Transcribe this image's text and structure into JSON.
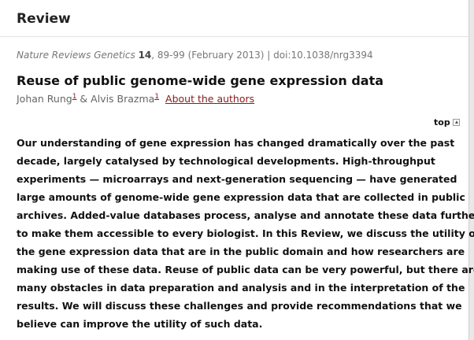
{
  "section": {
    "heading": "Review"
  },
  "citation": {
    "journal": "Nature Reviews Genetics",
    "volume": "14",
    "rest": ", 89-99 (February 2013) | doi:10.1038/nrg3394"
  },
  "article": {
    "title": "Reuse of public genome-wide gene expression data",
    "author1": "Johan Rung",
    "author1_ref": "1",
    "connector": " & ",
    "author2": "Alvis Brazma",
    "author2_ref": "1",
    "about_link": "About the authors"
  },
  "nav": {
    "top_label": "top"
  },
  "abstract": {
    "lines": [
      "Our understanding of gene expression has changed dramatically over the past",
      "decade, largely catalysed by technological developments. High-throughput",
      "experiments — microarrays and next-generation sequencing — have generated",
      "large amounts of genome-wide gene expression data that are collected in public",
      "archives. Added-value databases process, analyse and annotate these data further",
      "to make them accessible to every biologist. In this Review, we discuss the utility of",
      "the gene expression data that are in the public domain and how researchers are",
      "making use of these data. Reuse of public data can be very powerful, but there are",
      "many obstacles in data preparation and analysis and in the interpretation of the",
      "results. We will discuss these challenges and provide recommendations that we",
      "believe can improve the utility of such data."
    ]
  },
  "colors": {
    "link": "#8a1a1a",
    "muted": "#777777",
    "text": "#111111"
  }
}
